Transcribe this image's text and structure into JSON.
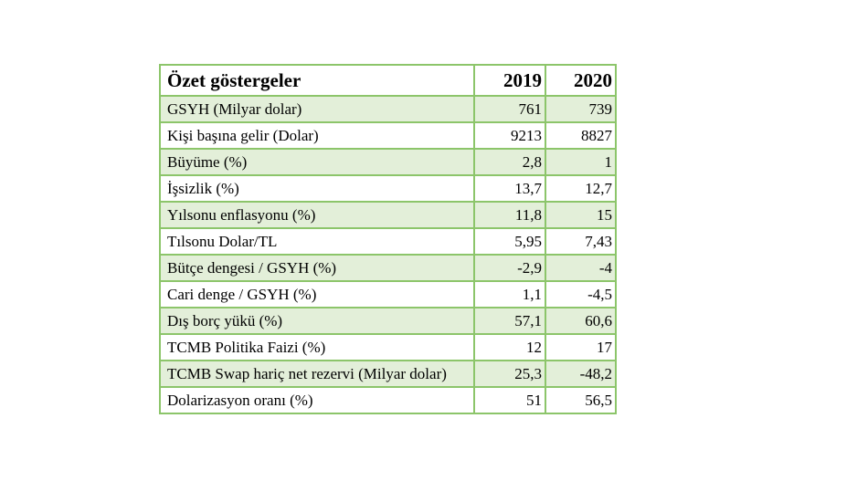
{
  "table": {
    "headers": {
      "label": "Özet göstergeler",
      "year1": "2019",
      "year2": "2020"
    },
    "rows": [
      {
        "label": "GSYH (Milyar dolar)",
        "v2019": "761",
        "v2020": "739"
      },
      {
        "label": "Kişi başına gelir (Dolar)",
        "v2019": "9213",
        "v2020": "8827"
      },
      {
        "label": "Büyüme (%)",
        "v2019": "2,8",
        "v2020": "1"
      },
      {
        "label": "İşsizlik (%)",
        "v2019": "13,7",
        "v2020": "12,7"
      },
      {
        "label": "Yılsonu enflasyonu (%)",
        "v2019": "11,8",
        "v2020": "15"
      },
      {
        "label": "Tılsonu Dolar/TL",
        "v2019": "5,95",
        "v2020": "7,43"
      },
      {
        "label": "Bütçe dengesi / GSYH (%)",
        "v2019": "-2,9",
        "v2020": "-4"
      },
      {
        "label": "Cari denge / GSYH (%)",
        "v2019": "1,1",
        "v2020": "-4,5"
      },
      {
        "label": "Dış borç yükü (%)",
        "v2019": "57,1",
        "v2020": "60,6"
      },
      {
        "label": "TCMB Politika Faizi (%)",
        "v2019": "12",
        "v2020": "17"
      },
      {
        "label": "TCMB Swap hariç net rezervi (Milyar dolar)",
        "v2019": "25,3",
        "v2020": "-48,2"
      },
      {
        "label": "Dolarizasyon oranı (%)",
        "v2019": "51",
        "v2020": "56,5"
      }
    ]
  },
  "colors": {
    "border": "#8cc56a",
    "row_shade": "#e3efd9"
  }
}
